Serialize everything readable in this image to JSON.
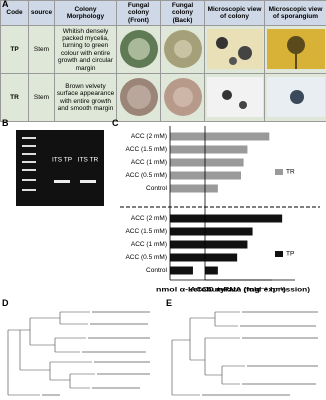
{
  "panels": [
    "A",
    "B",
    "C",
    "D",
    "E"
  ],
  "table": {
    "headers": [
      "Code",
      "source",
      "Colony Morphology",
      "Fungal colony (Front)",
      "Fungal colony (Back)",
      "Microscopic view of colony",
      "Microscopic view of sporangium"
    ],
    "rows": [
      [
        "TP",
        "Stem",
        "Whitish densely packed mycelia, turning to green colour with entire growth and circular margin"
      ],
      [
        "TR",
        "Stem",
        "Brown velvety surface appearance with entire growth and smooth margin"
      ]
    ]
  },
  "gel": {
    "lanes": [
      "ITS TP",
      "ITS TR"
    ]
  },
  "chart_data": [
    {
      "type": "bar",
      "orientation": "horizontal",
      "xlabel": "nmol α-ketobutyrate (mg⁻¹ h⁻¹)",
      "categories": [
        "ACC (2 mM)",
        "ACC (1.5 mM)",
        "ACC (1 mM)",
        "ACC (0.5 mM)",
        "Control"
      ],
      "xlim": [
        0,
        400
      ],
      "series": [
        {
          "color": "#9a9a9a",
          "values": [
            300,
            270,
            230,
            210,
            140
          ]
        },
        {
          "color": "#111111",
          "values": [
            300,
            240,
            200,
            150,
            90
          ]
        }
      ]
    },
    {
      "type": "bar",
      "orientation": "horizontal",
      "xlabel": "ACCD mRNA (fold expression)",
      "xlim": [
        0,
        7
      ],
      "series": [
        {
          "name": "TR",
          "color": "#9a9a9a",
          "values": [
            5,
            3.3,
            3,
            2.8,
            1
          ]
        },
        {
          "name": "TP",
          "color": "#111111",
          "values": [
            6,
            3.7,
            3.3,
            2.5,
            1
          ]
        }
      ]
    }
  ]
}
